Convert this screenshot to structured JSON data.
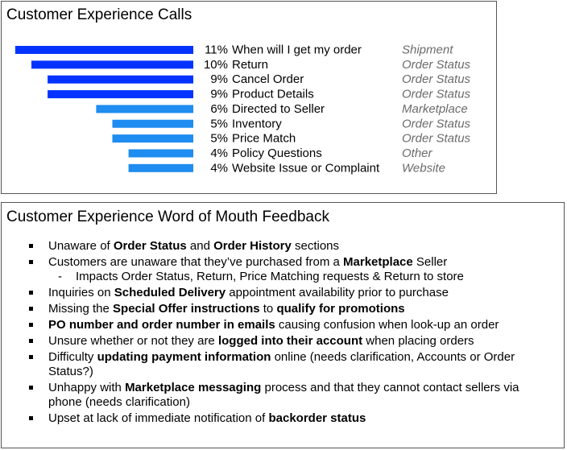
{
  "calls": {
    "title": "Customer Experience Calls"
  },
  "chart_data": {
    "type": "bar",
    "orientation": "horizontal",
    "title": "Customer Experience Calls",
    "categories": [
      "When will I get my order",
      "Return",
      "Cancel Order",
      "Product Details",
      "Directed to Seller",
      "Inventory",
      "Price Match",
      "Policy Questions",
      "Website Issue or Complaint"
    ],
    "values": [
      11,
      10,
      9,
      9,
      6,
      5,
      5,
      4,
      4
    ],
    "value_labels": [
      "11%",
      "10%",
      "9%",
      "9%",
      "6%",
      "5%",
      "5%",
      "4%",
      "4%"
    ],
    "groups": [
      "Shipment",
      "Order Status",
      "Order Status",
      "Order Status",
      "Marketplace",
      "Order Status",
      "Order Status",
      "Other",
      "Website"
    ],
    "unit": "%",
    "colors": {
      "high": "#0433ff",
      "low": "#1e8cf0"
    },
    "bar_direction": "right-aligned"
  },
  "wom": {
    "title": "Customer Experience Word of Mouth Feedback",
    "items": [
      {
        "parts": [
          {
            "t": "Unaware of ",
            "b": false
          },
          {
            "t": "Order Status",
            "b": true
          },
          {
            "t": " and ",
            "b": false
          },
          {
            "t": "Order History",
            "b": true
          },
          {
            "t": " sections",
            "b": false
          }
        ]
      },
      {
        "parts": [
          {
            "t": "Customers are unaware that they’ve purchased from a ",
            "b": false
          },
          {
            "t": "Marketplace",
            "b": true
          },
          {
            "t": " Seller",
            "b": false
          }
        ],
        "sub": [
          "Impacts Order Status, Return, Price Matching requests & Return to store"
        ]
      },
      {
        "parts": [
          {
            "t": "Inquiries on ",
            "b": false
          },
          {
            "t": "Scheduled Delivery",
            "b": true
          },
          {
            "t": " appointment availability prior to purchase",
            "b": false
          }
        ]
      },
      {
        "parts": [
          {
            "t": "Missing the ",
            "b": false
          },
          {
            "t": "Special Offer instructions",
            "b": true
          },
          {
            "t": " to ",
            "b": false
          },
          {
            "t": "qualify for promotions",
            "b": true
          }
        ]
      },
      {
        "parts": [
          {
            "t": "PO number and order number in emails",
            "b": true
          },
          {
            "t": " causing confusion when look-up an order",
            "b": false
          }
        ]
      },
      {
        "parts": [
          {
            "t": "Unsure whether or not they are ",
            "b": false
          },
          {
            "t": "logged into their account",
            "b": true
          },
          {
            "t": " when placing orders",
            "b": false
          }
        ]
      },
      {
        "parts": [
          {
            "t": "Difficulty ",
            "b": false
          },
          {
            "t": "updating payment information",
            "b": true
          },
          {
            "t": " online (needs clarification, Accounts or Order Status?)",
            "b": false
          }
        ]
      },
      {
        "parts": [
          {
            "t": "Unhappy with ",
            "b": false
          },
          {
            "t": "Marketplace messaging",
            "b": true
          },
          {
            "t": " process and that they cannot contact sellers via phone (needs clarification)",
            "b": false
          }
        ]
      },
      {
        "parts": [
          {
            "t": "Upset at lack of immediate notification of ",
            "b": false
          },
          {
            "t": "backorder status",
            "b": true
          }
        ]
      }
    ]
  }
}
